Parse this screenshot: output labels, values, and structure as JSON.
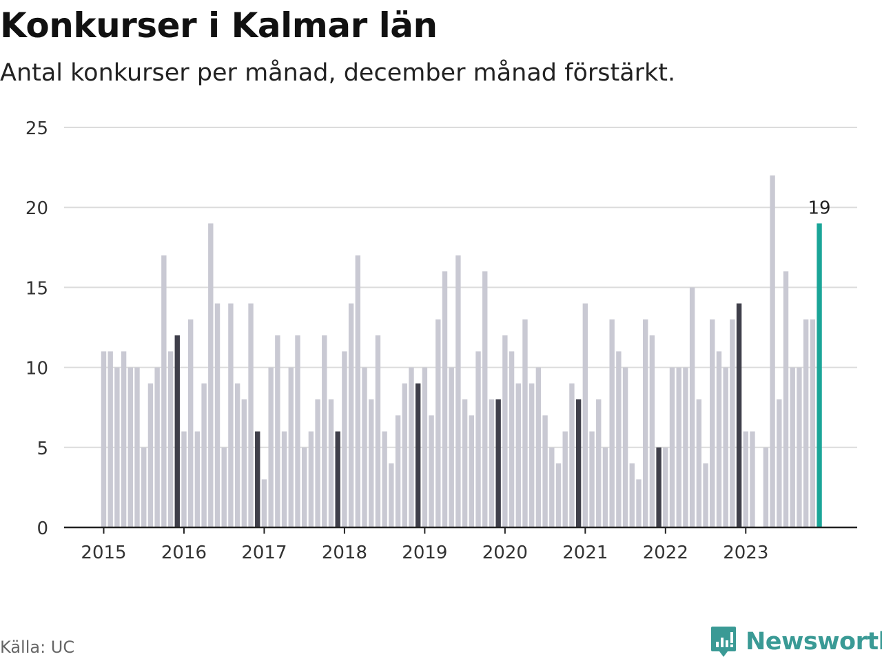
{
  "header": {
    "title": "Konkurser i Kalmar län",
    "subtitle": "Antal konkurser per månad, december månad förstärkt."
  },
  "footer": {
    "source": "Källa: UC",
    "brand": "Newsworthy",
    "brand_icon": "newsworthy-logo-icon"
  },
  "colors": {
    "bar": "#c9c9d3",
    "december": "#3f3f4a",
    "latest": "#1aa598",
    "grid": "#dcdcdc",
    "axis": "#222222",
    "brand": "#3a9a95"
  },
  "chart_data": {
    "type": "bar",
    "start": "2015-01",
    "end": "2023-12",
    "ylim": [
      0,
      25
    ],
    "yticks": [
      0,
      5,
      10,
      15,
      20,
      25
    ],
    "xticks": [
      "2015",
      "2016",
      "2017",
      "2018",
      "2019",
      "2020",
      "2021",
      "2022",
      "2023"
    ],
    "grid": true,
    "highlight": "december bars darker, latest month teal",
    "latest_label": "19",
    "values": [
      11,
      11,
      10,
      11,
      10,
      10,
      5,
      9,
      10,
      17,
      11,
      12,
      6,
      13,
      6,
      9,
      19,
      14,
      5,
      14,
      9,
      8,
      14,
      6,
      3,
      10,
      12,
      6,
      10,
      12,
      5,
      6,
      8,
      12,
      8,
      6,
      11,
      14,
      17,
      10,
      8,
      12,
      6,
      4,
      7,
      9,
      10,
      9,
      10,
      7,
      13,
      16,
      10,
      17,
      8,
      7,
      11,
      16,
      8,
      8,
      12,
      11,
      9,
      13,
      9,
      10,
      7,
      5,
      4,
      6,
      9,
      8,
      14,
      6,
      8,
      5,
      13,
      11,
      10,
      4,
      3,
      13,
      12,
      5,
      5,
      10,
      10,
      10,
      15,
      8,
      4,
      13,
      11,
      10,
      13,
      14,
      6,
      6,
      0,
      5,
      22,
      8,
      16,
      10,
      10,
      13,
      13,
      19
    ]
  }
}
